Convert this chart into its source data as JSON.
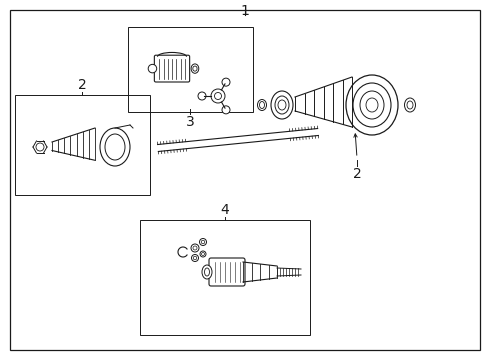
{
  "bg_color": "#ffffff",
  "line_color": "#1a1a1a",
  "label_1": "1",
  "label_2": "2",
  "label_3": "3",
  "label_4": "4",
  "label_fontsize": 10
}
